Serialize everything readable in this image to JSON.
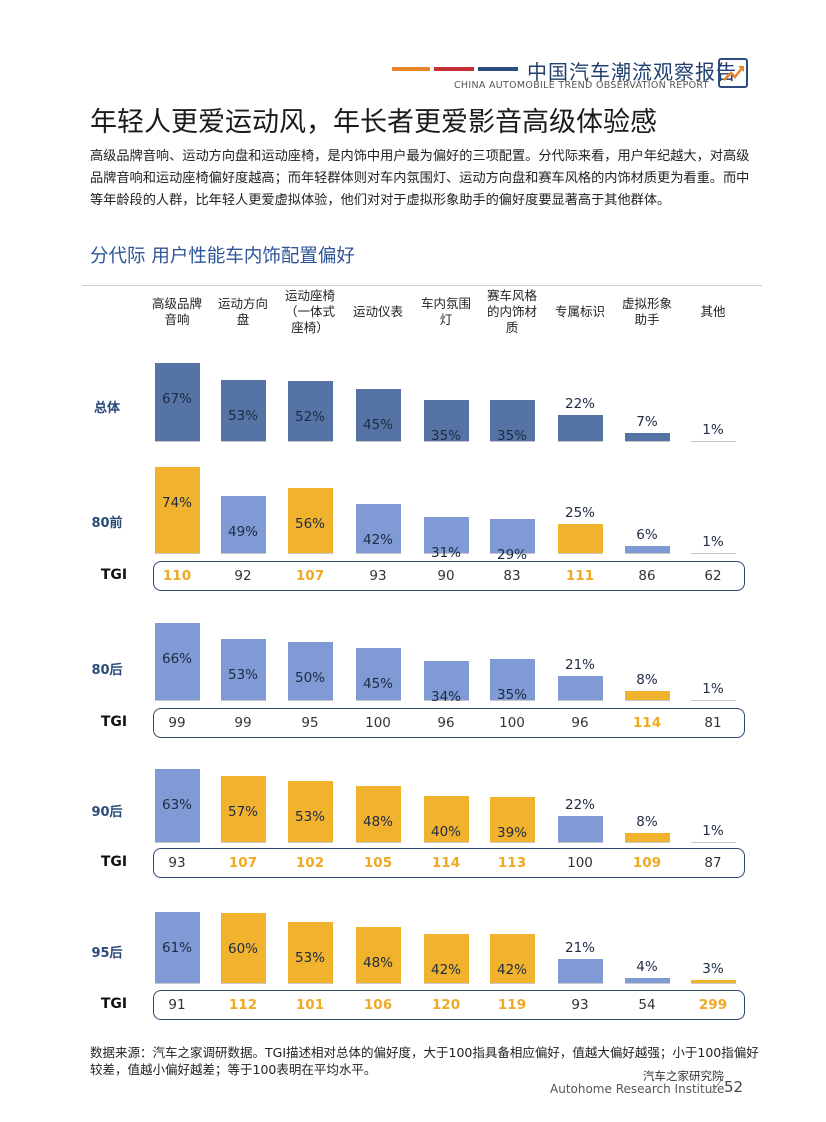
{
  "header": {
    "title_cn": "中国汽车潮流观察报告",
    "subtitle_en": "CHINA AUTOMOBILE TREND OBSERVATION REPORT",
    "stripe_colors": [
      "#e8862a",
      "#c62f35",
      "#2c4b80"
    ]
  },
  "page_title": "年轻人更爱运动风，年长者更爱影音高级体验感",
  "intro": "高级品牌音响、运动方向盘和运动座椅，是内饰中用户最为偏好的三项配置。分代际来看，用户年纪越大，对高级品牌音响和运动座椅偏好度越高；而年轻群体则对车内氛围灯、运动方向盘和赛车风格的内饰材质更为看重。而中等年龄段的人群，比年轻人更爱虚拟体验，他们对对于虚拟形象助手的偏好度要显著高于其他群体。",
  "chart_data": {
    "type": "bar",
    "title": "分代际  用户性能车内饰配置偏好",
    "categories": [
      "高级品牌音响",
      "运动方向盘",
      "运动座椅（一体式座椅）",
      "运动仪表",
      "车内氛围灯",
      "赛车风格的内饰材质",
      "专属标识",
      "虚拟形象助手",
      "其他"
    ],
    "category_headers": [
      [
        "高级品牌",
        "音响"
      ],
      [
        "运动方向",
        "盘"
      ],
      [
        "运动座椅",
        "（一体式",
        "座椅）"
      ],
      [
        "运动仪表"
      ],
      [
        "车内氛围",
        "灯"
      ],
      [
        "赛车风格",
        "的内饰材",
        "质"
      ],
      [
        "专属标识"
      ],
      [
        "虚拟形象",
        "助手"
      ],
      [
        "其他"
      ]
    ],
    "unit": "%",
    "tgi_label": "TGI",
    "highlight_color": "#f1b22d",
    "series": [
      {
        "name": "总体",
        "values": [
          67,
          53,
          52,
          45,
          35,
          35,
          22,
          7,
          1
        ],
        "tgi": null,
        "highlight": [
          false,
          false,
          false,
          false,
          false,
          false,
          false,
          false,
          false
        ]
      },
      {
        "name": "80前",
        "values": [
          74,
          49,
          56,
          42,
          31,
          29,
          25,
          6,
          1
        ],
        "tgi": [
          110,
          92,
          107,
          93,
          90,
          83,
          111,
          86,
          62
        ],
        "highlight": [
          true,
          false,
          true,
          false,
          false,
          false,
          true,
          false,
          false
        ]
      },
      {
        "name": "80后",
        "values": [
          66,
          53,
          50,
          45,
          34,
          35,
          21,
          8,
          1
        ],
        "tgi": [
          99,
          99,
          95,
          100,
          96,
          100,
          96,
          114,
          81
        ],
        "highlight": [
          false,
          false,
          false,
          false,
          false,
          false,
          false,
          true,
          false
        ]
      },
      {
        "name": "90后",
        "values": [
          63,
          57,
          53,
          48,
          40,
          39,
          22,
          8,
          1
        ],
        "tgi": [
          93,
          107,
          102,
          105,
          114,
          113,
          100,
          109,
          87
        ],
        "highlight": [
          false,
          true,
          true,
          true,
          true,
          true,
          false,
          true,
          false
        ]
      },
      {
        "name": "95后",
        "values": [
          61,
          60,
          53,
          48,
          42,
          42,
          21,
          4,
          3
        ],
        "tgi": [
          91,
          112,
          101,
          106,
          120,
          119,
          93,
          54,
          299
        ],
        "highlight": [
          false,
          true,
          true,
          true,
          true,
          true,
          false,
          false,
          true
        ]
      }
    ]
  },
  "note": "数据来源：汽车之家调研数据。TGI描述相对总体的偏好度，大于100指具备相应偏好，值越大偏好越强；小于100指偏好较差，值越小偏好越差；等于100表明在平均水平。",
  "footer": {
    "org_cn": "汽车之家研究院",
    "org_en": "Autohome Research Institute",
    "page_number": "52"
  }
}
